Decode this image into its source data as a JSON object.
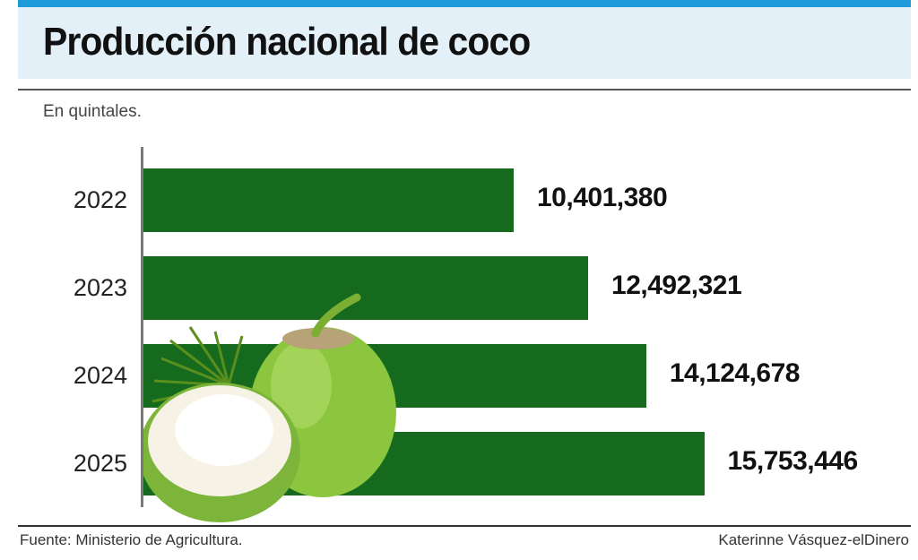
{
  "title": "Producción nacional de coco",
  "unit_note": "En quintales.",
  "footer": {
    "source": "Fuente: Ministerio de Agricultura.",
    "credit": "Katerinne Vásquez-elDinero"
  },
  "colors": {
    "bar": "#156a1e",
    "accent": "#1d9bd9",
    "header_bg": "#e3f0f8"
  },
  "decoration": {
    "illustration": "green-coconut-icon"
  },
  "chart_data": {
    "type": "bar",
    "orientation": "horizontal",
    "categories": [
      "2022",
      "2023",
      "2024",
      "2025"
    ],
    "values": [
      10401380,
      12492321,
      14124678,
      15753446
    ],
    "value_labels": [
      "10,401,380",
      "12,492,321",
      "14,124,678",
      "15,753,446"
    ],
    "title": "Producción nacional de coco",
    "xlabel": "",
    "ylabel": "",
    "grid": false,
    "legend": "none"
  }
}
